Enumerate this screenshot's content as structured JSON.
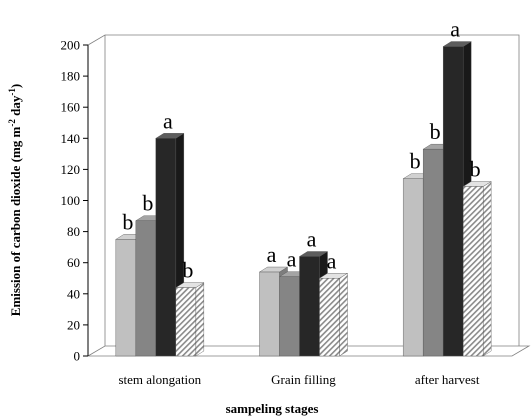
{
  "chart_data": {
    "type": "bar",
    "categories": [
      "stem alongation",
      "Grain filling",
      "after harvest"
    ],
    "series": [
      {
        "color": "#c0c0c0",
        "pattern": "solid",
        "values": [
          75,
          54,
          114
        ],
        "letters": [
          "b",
          "a",
          "b"
        ]
      },
      {
        "color": "#858585",
        "pattern": "solid",
        "values": [
          87,
          51,
          133
        ],
        "letters": [
          "b",
          "a",
          "b"
        ]
      },
      {
        "color": "#272727",
        "pattern": "solid",
        "values": [
          140,
          64,
          199
        ],
        "letters": [
          "a",
          "a",
          "a"
        ]
      },
      {
        "color": "#d9d9d9",
        "pattern": "diagonal-hatch",
        "values": [
          44,
          50,
          109
        ],
        "letters": [
          "b",
          "a",
          "b"
        ]
      }
    ],
    "xlabel": "sampeling stages",
    "ylabel": "Emission of carbon dioxide (mg m",
    "ylabel_sup1": "-2",
    "ylabel_mid": " day",
    "ylabel_sup2": "-1",
    "ylabel_end": ")",
    "ylim": [
      0,
      200
    ],
    "yticks": [
      "0",
      "20",
      "40",
      "60",
      "80",
      "100",
      "120",
      "140",
      "160",
      "180",
      "200"
    ],
    "grid": false,
    "legend": "none",
    "style": "3d-column"
  }
}
